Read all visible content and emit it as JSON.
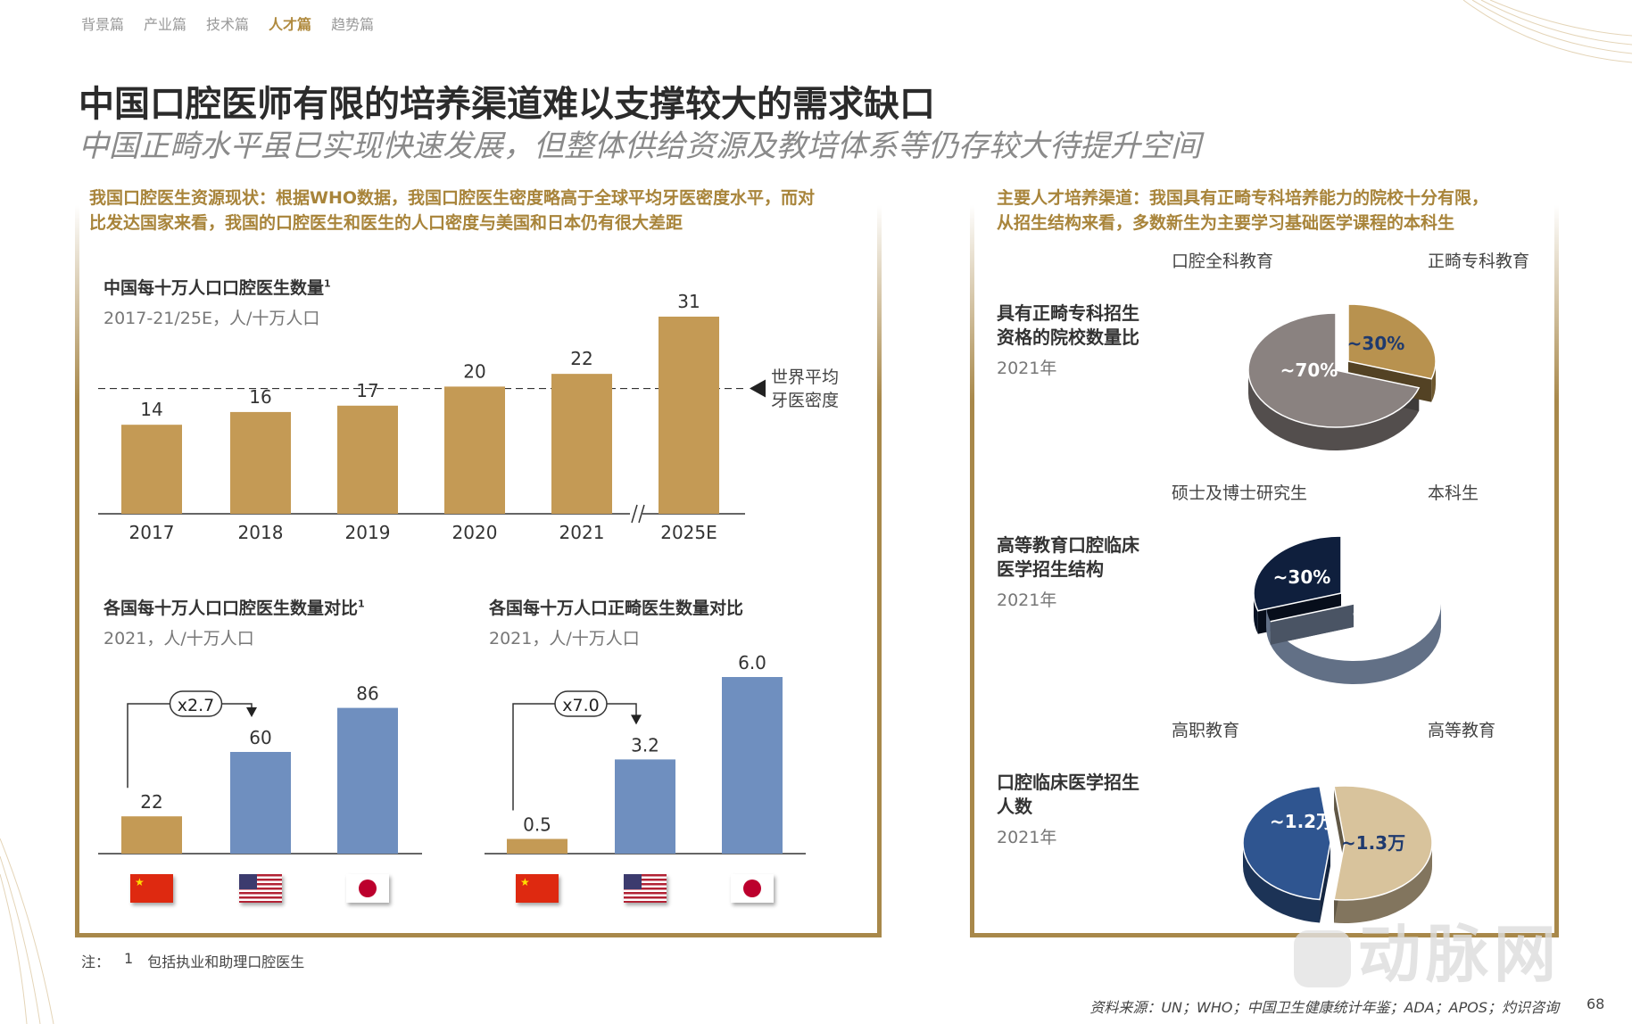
{
  "nav": {
    "tabs": [
      "背景篇",
      "产业篇",
      "技术篇",
      "人才篇",
      "趋势篇"
    ],
    "active": 3
  },
  "title": "中国口腔医师有限的培养渠道难以支撑较大的需求缺口",
  "subtitle": "中国正畸水平虽已实现快速发展，但整体供给资源及教培体系等仍存较大待提升空间",
  "left_panel": {
    "note_line1": "我国口腔医生资源现状：根据WHO数据，我国口腔医生密度略高于全球平均牙医密度水平，而对",
    "note_line2": "比发达国家来看，我国的口腔医生和医生的人口密度与美国和日本仍有很大差距"
  },
  "right_panel": {
    "note_line1": "主要人才培养渠道：我国具有正畸专科培养能力的院校十分有限，",
    "note_line2": "从招生结构来看，多数新生为主要学习基础医学课程的本科生"
  },
  "colors": {
    "gold": "#c49a55",
    "blue": "#6f8fbf",
    "frame": "#a8884a",
    "note": "#a8843a"
  },
  "chart_data": [
    {
      "type": "bar",
      "title": "中国每十万人口口腔医生数量",
      "title_sup": "1",
      "subtitle": "2017-21/25E，人/十万人口",
      "categories": [
        "2017",
        "2018",
        "2019",
        "2020",
        "2021",
        "2025E"
      ],
      "values": [
        14,
        16,
        17,
        20,
        22,
        31
      ],
      "reference_line": {
        "value": 19.7,
        "label_line1": "世界平均",
        "label_line2": "牙医密度"
      },
      "axis_break_before": "2025E",
      "color": "#c49a55"
    },
    {
      "type": "bar",
      "title": "各国每十万人口口腔医生数量对比",
      "title_sup": "1",
      "subtitle": "2021，人/十万人口",
      "categories": [
        "China",
        "USA",
        "Japan"
      ],
      "values": [
        22,
        60,
        86
      ],
      "colors": [
        "#c49a55",
        "#6f8fbf",
        "#6f8fbf"
      ],
      "annotation": "x2.7"
    },
    {
      "type": "bar",
      "title": "各国每十万人口正畸医生数量对比",
      "subtitle": "2021，人/十万人口",
      "categories": [
        "China",
        "USA",
        "Japan"
      ],
      "values": [
        "0.5",
        "3.2",
        "6.0"
      ],
      "colors": [
        "#c49a55",
        "#6f8fbf",
        "#6f8fbf"
      ],
      "annotation": "x7.0"
    },
    {
      "type": "pie",
      "title_line1": "具有正畸专科招生",
      "title_line2": "资格的院校数量比",
      "year": "2021年",
      "slices": [
        {
          "name": "口腔全科教育",
          "label": "~70%",
          "value": 70,
          "color": "#8a8280"
        },
        {
          "name": "正畸专科教育",
          "label": "~30%",
          "value": 30,
          "color": "#b8924f"
        }
      ]
    },
    {
      "type": "pie",
      "title_line1": "高等教育口腔临床",
      "title_line2": "医学招生结构",
      "year": "2021年",
      "slices": [
        {
          "name": "硕士及博士研究生",
          "label": "~30%",
          "value": 30,
          "color": "#0f1f3d"
        },
        {
          "name": "本科生",
          "label": "~70%",
          "value": 70,
          "color": "#a4badf"
        }
      ]
    },
    {
      "type": "pie",
      "title_line1": "口腔临床医学招生",
      "title_line2": "人数",
      "year": "2021年",
      "slices": [
        {
          "name": "高职教育",
          "label": "~1.2万",
          "value": 1.2,
          "color": "#2f5590"
        },
        {
          "name": "高等教育",
          "label": "~1.3万",
          "value": 1.3,
          "color": "#d8c39c"
        }
      ]
    }
  ],
  "footnote": {
    "prefix": "注：",
    "num": "1",
    "text": "包括执业和助理口腔医生"
  },
  "source": "资料来源：UN；WHO；中国卫生健康统计年鉴；ADA；APOS；灼识咨询",
  "page": "68",
  "watermark": "动脉网"
}
